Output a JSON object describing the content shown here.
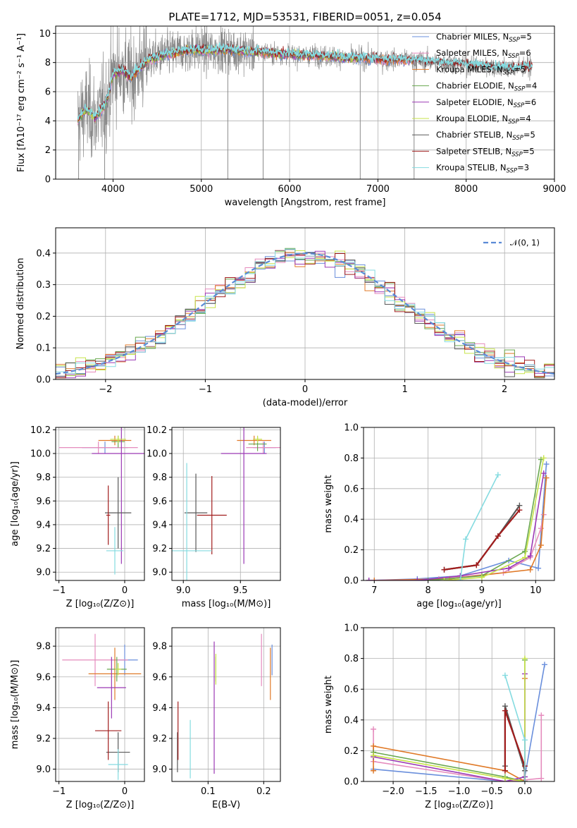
{
  "colors": {
    "chabrier_miles": "#6a8fdc",
    "salpeter_miles": "#e58bbd",
    "kroupa_miles": "#e07a28",
    "chabrier_elodie": "#6aa84f",
    "salpeter_elodie": "#9b39b5",
    "kroupa_elodie": "#c7e34a",
    "chabrier_stelib": "#595959",
    "salpeter_stelib": "#a11d1d",
    "kroupa_stelib": "#84dbe0",
    "data_gray": "#8a8a8a",
    "normal_curve": "#5b8bd6"
  },
  "chart_data": [
    {
      "id": "spectrum",
      "type": "line",
      "title": "PLATE=1712, MJD=53531, FIBERID=0051, z=0.054",
      "xlabel": "wavelength [Angstrom, rest frame]",
      "ylabel": "Flux [fλ10⁻¹⁷ erg cm⁻² s⁻¹ A⁻¹]",
      "xlim": [
        3350,
        9000
      ],
      "ylim": [
        0,
        10.5
      ],
      "xticks": [
        4000,
        5000,
        6000,
        7000,
        8000,
        9000
      ],
      "yticks": [
        0,
        2,
        4,
        6,
        8,
        10
      ],
      "data_range": [
        3600,
        8750
      ],
      "continuum_x": [
        3600,
        3650,
        3700,
        3800,
        3900,
        3950,
        4000,
        4100,
        4200,
        4300,
        4400,
        4500,
        4700,
        4900,
        5100,
        5300,
        5500,
        5700,
        5900,
        6100,
        6300,
        6500,
        6700,
        6900,
        7100,
        7300,
        7500,
        7700,
        7900,
        8100,
        8300,
        8500,
        8750
      ],
      "continuum_y": [
        4.0,
        4.5,
        4.8,
        4.2,
        5.0,
        5.8,
        7.2,
        7.5,
        7.0,
        7.6,
        8.2,
        8.4,
        8.7,
        8.9,
        8.8,
        8.9,
        8.8,
        8.7,
        8.6,
        8.5,
        8.5,
        8.4,
        8.3,
        8.3,
        8.2,
        8.2,
        8.1,
        8.0,
        7.9,
        7.8,
        7.7,
        7.6,
        7.7
      ],
      "legend": [
        {
          "label": "Chabrier MILES, N",
          "sub": "SSP",
          "eq": "=5",
          "color_key": "chabrier_miles"
        },
        {
          "label": "Salpeter MILES, N",
          "sub": "SSP",
          "eq": "=6",
          "color_key": "salpeter_miles"
        },
        {
          "label": "Kroupa MILES, N",
          "sub": "SSP",
          "eq": "=5",
          "color_key": "kroupa_miles"
        },
        {
          "label": "Chabrier ELODIE, N",
          "sub": "SSP",
          "eq": "=4",
          "color_key": "chabrier_elodie"
        },
        {
          "label": "Salpeter ELODIE, N",
          "sub": "SSP",
          "eq": "=6",
          "color_key": "salpeter_elodie"
        },
        {
          "label": "Kroupa ELODIE, N",
          "sub": "SSP",
          "eq": "=4",
          "color_key": "kroupa_elodie"
        },
        {
          "label": "Chabrier STELIB, N",
          "sub": "SSP",
          "eq": "=5",
          "color_key": "chabrier_stelib"
        },
        {
          "label": "Salpeter STELIB, N",
          "sub": "SSP",
          "eq": "=5",
          "color_key": "salpeter_stelib"
        },
        {
          "label": "Kroupa STELIB, N",
          "sub": "SSP",
          "eq": "=3",
          "color_key": "kroupa_stelib"
        }
      ]
    },
    {
      "id": "residuals",
      "type": "line",
      "xlabel": "(data-model)/error",
      "ylabel": "Normed distribution",
      "xlim": [
        -2.5,
        2.5
      ],
      "ylim": [
        0,
        0.48
      ],
      "xticks": [
        -2,
        -1,
        0,
        1,
        2
      ],
      "yticks": [
        0.0,
        0.1,
        0.2,
        0.3,
        0.4
      ],
      "legend": "𝒩(0, 1)",
      "bin_width": 0.1
    },
    {
      "id": "z_age",
      "type": "scatter",
      "xlabel": "Z [log₁₀(Z/Z⊙)]",
      "ylabel": "age  [log₁₀(age/yr)]",
      "xlim": [
        -1.05,
        0.3
      ],
      "ylim": [
        8.93,
        10.22
      ],
      "xticks": [
        -1,
        0
      ],
      "yticks": [
        9.0,
        9.2,
        9.4,
        9.6,
        9.8,
        10.0,
        10.2
      ],
      "points": [
        {
          "x": -0.3,
          "y": 10.05,
          "xerr": 0.35,
          "yerr": 0.05,
          "color_key": "chabrier_miles"
        },
        {
          "x": -0.4,
          "y": 10.05,
          "xerr": 0.6,
          "yerr": 0.05,
          "color_key": "salpeter_miles"
        },
        {
          "x": -0.15,
          "y": 10.11,
          "xerr": 0.25,
          "yerr": 0.04,
          "color_key": "kroupa_miles"
        },
        {
          "x": -0.1,
          "y": 10.1,
          "xerr": 0.1,
          "yerr": 0.05,
          "color_key": "chabrier_elodie"
        },
        {
          "x": -0.05,
          "y": 10.0,
          "xerr": 0.45,
          "yerr": 0.93,
          "color_key": "salpeter_elodie"
        },
        {
          "x": -0.1,
          "y": 10.12,
          "xerr": 0.12,
          "yerr": 0.03,
          "color_key": "kroupa_elodie"
        },
        {
          "x": -0.1,
          "y": 9.5,
          "xerr": 0.2,
          "yerr": 0.3,
          "color_key": "chabrier_stelib"
        },
        {
          "x": -0.25,
          "y": 9.48,
          "xerr": 0.03,
          "yerr": 0.25,
          "color_key": "salpeter_stelib"
        },
        {
          "x": -0.15,
          "y": 9.18,
          "xerr": 0.13,
          "yerr": 0.2,
          "color_key": "kroupa_stelib"
        }
      ]
    },
    {
      "id": "mass_age",
      "type": "scatter",
      "xlabel": "mass [log₁₀(M/M⊙)]",
      "ylabel": "",
      "xlim": [
        8.9,
        9.85
      ],
      "ylim": [
        8.93,
        10.22
      ],
      "xticks": [
        9.0,
        9.5
      ],
      "yticks": [
        9.0,
        9.2,
        9.4,
        9.6,
        9.8,
        10.0,
        10.2
      ],
      "points": [
        {
          "x": 9.71,
          "y": 10.05,
          "xerr": 0.1,
          "yerr": 0.05,
          "color_key": "chabrier_miles"
        },
        {
          "x": 9.7,
          "y": 10.05,
          "xerr": 0.15,
          "yerr": 0.05,
          "color_key": "salpeter_miles"
        },
        {
          "x": 9.62,
          "y": 10.11,
          "xerr": 0.15,
          "yerr": 0.04,
          "color_key": "kroupa_miles"
        },
        {
          "x": 9.65,
          "y": 10.08,
          "xerr": 0.08,
          "yerr": 0.06,
          "color_key": "chabrier_elodie"
        },
        {
          "x": 9.53,
          "y": 10.0,
          "xerr": 0.2,
          "yerr": 0.93,
          "color_key": "salpeter_elodie"
        },
        {
          "x": 9.65,
          "y": 10.12,
          "xerr": 0.04,
          "yerr": 0.03,
          "color_key": "kroupa_elodie"
        },
        {
          "x": 9.11,
          "y": 9.5,
          "xerr": 0.1,
          "yerr": 0.33,
          "color_key": "chabrier_stelib"
        },
        {
          "x": 9.25,
          "y": 9.48,
          "xerr": 0.13,
          "yerr": 0.33,
          "color_key": "salpeter_stelib"
        },
        {
          "x": 9.03,
          "y": 9.18,
          "xerr": 0.22,
          "yerr": 0.74,
          "color_key": "kroupa_stelib"
        }
      ]
    },
    {
      "id": "age_weight",
      "type": "line",
      "xlabel": "age  [log₁₀(age/yr)]",
      "ylabel": "mass weight",
      "xlim": [
        6.8,
        10.35
      ],
      "ylim": [
        0,
        1.0
      ],
      "xticks": [
        7,
        8,
        9,
        10
      ],
      "yticks": [
        0.0,
        0.2,
        0.4,
        0.6,
        0.8,
        1.0
      ],
      "series": [
        {
          "color_key": "chabrier_miles",
          "x": [
            6.9,
            7.8,
            8.6,
            9.5,
            10.05,
            10.2
          ],
          "y": [
            0.0,
            0.01,
            0.03,
            0.13,
            0.08,
            0.76
          ]
        },
        {
          "color_key": "salpeter_miles",
          "x": [
            6.9,
            8.2,
            9.4,
            9.9,
            10.1,
            10.15
          ],
          "y": [
            0.0,
            0.01,
            0.05,
            0.15,
            0.34,
            0.43
          ]
        },
        {
          "color_key": "kroupa_miles",
          "x": [
            7.0,
            8.4,
            9.9,
            10.1,
            10.2
          ],
          "y": [
            0.0,
            0.01,
            0.07,
            0.23,
            0.67
          ]
        },
        {
          "color_key": "chabrier_elodie",
          "x": [
            8.0,
            9.0,
            9.8,
            10.1
          ],
          "y": [
            0.0,
            0.03,
            0.19,
            0.79
          ]
        },
        {
          "color_key": "salpeter_elodie",
          "x": [
            6.9,
            7.8,
            8.6,
            9.5,
            9.9,
            10.15
          ],
          "y": [
            0.0,
            0.0,
            0.03,
            0.08,
            0.16,
            0.7
          ]
        },
        {
          "color_key": "kroupa_elodie",
          "x": [
            8.3,
            9.0,
            9.8,
            10.15
          ],
          "y": [
            0.0,
            0.02,
            0.15,
            0.8
          ]
        },
        {
          "color_key": "chabrier_stelib",
          "x": [
            8.3,
            8.9,
            9.3,
            9.7
          ],
          "y": [
            0.07,
            0.1,
            0.29,
            0.49
          ]
        },
        {
          "color_key": "salpeter_stelib",
          "x": [
            8.3,
            8.9,
            9.3,
            9.7
          ],
          "y": [
            0.07,
            0.1,
            0.29,
            0.46
          ]
        },
        {
          "color_key": "kroupa_stelib",
          "x": [
            8.6,
            8.7,
            9.3
          ],
          "y": [
            0.0,
            0.27,
            0.69
          ]
        }
      ]
    },
    {
      "id": "z_mass",
      "type": "scatter",
      "xlabel": "Z [log₁₀(Z/Z⊙)]",
      "ylabel": "mass [log₁₀(M/M⊙)]",
      "xlim": [
        -1.05,
        0.3
      ],
      "ylim": [
        8.92,
        9.92
      ],
      "xticks": [
        -1,
        0
      ],
      "yticks": [
        9.0,
        9.2,
        9.4,
        9.6,
        9.8
      ],
      "points": [
        {
          "x": 0.0,
          "y": 9.71,
          "xerr": 0.2,
          "yerr": 0.1,
          "color_key": "chabrier_miles"
        },
        {
          "x": -0.45,
          "y": 9.71,
          "xerr": 0.5,
          "yerr": 0.17,
          "color_key": "salpeter_miles"
        },
        {
          "x": -0.15,
          "y": 9.62,
          "xerr": 0.4,
          "yerr": 0.17,
          "color_key": "kroupa_miles"
        },
        {
          "x": -0.12,
          "y": 9.65,
          "xerr": 0.15,
          "yerr": 0.08,
          "color_key": "chabrier_elodie"
        },
        {
          "x": -0.2,
          "y": 9.53,
          "xerr": 0.22,
          "yerr": 0.2,
          "color_key": "salpeter_elodie"
        },
        {
          "x": -0.1,
          "y": 9.65,
          "xerr": 0.05,
          "yerr": 0.04,
          "color_key": "kroupa_elodie"
        },
        {
          "x": -0.1,
          "y": 9.11,
          "xerr": 0.18,
          "yerr": 0.13,
          "color_key": "chabrier_stelib"
        },
        {
          "x": -0.25,
          "y": 9.25,
          "xerr": 0.2,
          "yerr": 0.19,
          "color_key": "salpeter_stelib"
        },
        {
          "x": -0.1,
          "y": 9.03,
          "xerr": 0.15,
          "yerr": 0.1,
          "color_key": "kroupa_stelib"
        }
      ]
    },
    {
      "id": "ebv_mass",
      "type": "scatter",
      "xlabel": "E(B-V)",
      "ylabel": "",
      "xlim": [
        0.035,
        0.23
      ],
      "ylim": [
        8.92,
        9.92
      ],
      "xticks": [
        0.1,
        0.2
      ],
      "yticks": [
        9.0,
        9.2,
        9.4,
        9.6,
        9.8
      ],
      "points": [
        {
          "x": 0.215,
          "y": 9.71,
          "xerr": 0,
          "yerr": 0.1,
          "color_key": "chabrier_miles"
        },
        {
          "x": 0.196,
          "y": 9.71,
          "xerr": 0,
          "yerr": 0.17,
          "color_key": "salpeter_miles"
        },
        {
          "x": 0.212,
          "y": 9.62,
          "xerr": 0,
          "yerr": 0.17,
          "color_key": "kroupa_miles"
        },
        {
          "x": 0.114,
          "y": 9.65,
          "xerr": 0,
          "yerr": 0.08,
          "color_key": "chabrier_elodie"
        },
        {
          "x": 0.111,
          "y": 9.4,
          "xerr": 0,
          "yerr": 0.43,
          "color_key": "salpeter_elodie"
        },
        {
          "x": 0.114,
          "y": 9.65,
          "xerr": 0,
          "yerr": 0.1,
          "color_key": "kroupa_elodie"
        },
        {
          "x": 0.045,
          "y": 9.11,
          "xerr": 0,
          "yerr": 0.13,
          "color_key": "chabrier_stelib"
        },
        {
          "x": 0.046,
          "y": 9.25,
          "xerr": 0,
          "yerr": 0.19,
          "color_key": "salpeter_stelib"
        },
        {
          "x": 0.068,
          "y": 9.13,
          "xerr": 0,
          "yerr": 0.19,
          "color_key": "kroupa_stelib"
        }
      ]
    },
    {
      "id": "z_weight",
      "type": "line",
      "xlabel": "Z [log₁₀(Z/Z⊙)]",
      "ylabel": "mass weight",
      "xlim": [
        -2.45,
        0.45
      ],
      "ylim": [
        0,
        1.0
      ],
      "xticks": [
        -2.0,
        -1.5,
        -1.0,
        -0.5,
        0.0
      ],
      "yticks": [
        0.0,
        0.2,
        0.4,
        0.6,
        0.8,
        1.0
      ],
      "series": [
        {
          "color_key": "chabrier_miles",
          "x": [
            -2.3,
            -0.3,
            0.0,
            0.3
          ],
          "y": [
            0.08,
            0.0,
            0.03,
            0.76
          ]
        },
        {
          "color_key": "salpeter_miles",
          "x": [
            -2.3,
            -2.3,
            -0.3,
            0.0,
            0.25,
            0.25
          ],
          "y": [
            0.34,
            0.13,
            0.0,
            0.01,
            0.02,
            0.43
          ]
        },
        {
          "color_key": "kroupa_miles",
          "x": [
            -2.3,
            -2.3,
            -0.3,
            0.0,
            0.0
          ],
          "y": [
            0.07,
            0.23,
            0.07,
            0.0,
            0.67
          ]
        },
        {
          "color_key": "chabrier_elodie",
          "x": [
            -2.3,
            -0.3,
            0.0,
            0.0
          ],
          "y": [
            0.19,
            0.03,
            0.0,
            0.79
          ]
        },
        {
          "color_key": "salpeter_elodie",
          "x": [
            -2.3,
            -0.3,
            0.0,
            0.0
          ],
          "y": [
            0.16,
            0.0,
            0.03,
            0.7
          ]
        },
        {
          "color_key": "kroupa_elodie",
          "x": [
            -2.3,
            -0.3,
            0.0,
            0.0
          ],
          "y": [
            0.17,
            0.02,
            0.0,
            0.8
          ]
        },
        {
          "color_key": "chabrier_stelib",
          "x": [
            -0.3,
            -0.3,
            0.0,
            0.0
          ],
          "y": [
            0.1,
            0.49,
            0.07,
            0.0
          ]
        },
        {
          "color_key": "salpeter_stelib",
          "x": [
            -0.3,
            -0.3,
            0.0,
            0.0
          ],
          "y": [
            0.07,
            0.46,
            0.1,
            0.0
          ]
        },
        {
          "color_key": "kroupa_stelib",
          "x": [
            -0.3,
            0.0,
            0.0
          ],
          "y": [
            0.69,
            0.27,
            0.0
          ]
        }
      ]
    }
  ]
}
